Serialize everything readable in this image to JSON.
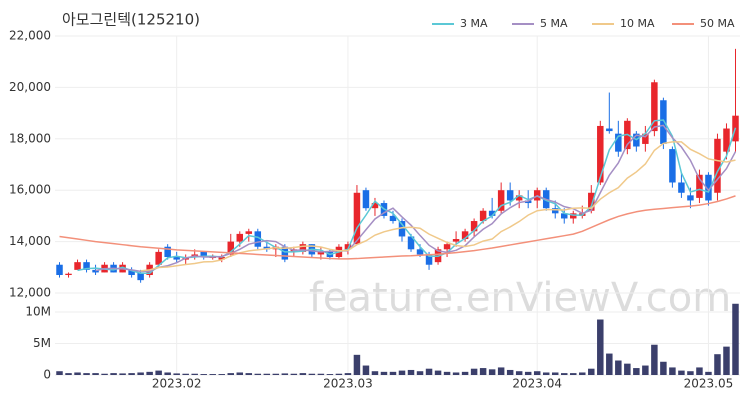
{
  "chart_data": [
    {
      "type": "candlestick",
      "title": "아모그린텍(125210)",
      "watermark": "feature.enViewV.com",
      "up_color": "#e8262c",
      "down_color": "#1a6ee6",
      "open": [
        13100,
        12700,
        12900,
        13200,
        12900,
        12800,
        13100,
        12800,
        12900,
        12800,
        12700,
        13100,
        13800,
        13400,
        13300,
        13400,
        13600,
        13400,
        13300,
        13500,
        14000,
        14300,
        14400,
        13800,
        13700,
        13800,
        13600,
        13600,
        13900,
        13500,
        13600,
        13400,
        13700,
        13900,
        16000,
        15300,
        15500,
        15000,
        14800,
        14200,
        13700,
        13500,
        13200,
        13700,
        14000,
        14100,
        14400,
        14800,
        15200,
        15200,
        16000,
        15600,
        15600,
        15600,
        16000,
        15300,
        15100,
        14900,
        15000,
        15200,
        16300,
        18400,
        18200,
        17600,
        18200,
        17800,
        18300,
        19500,
        17600,
        16300,
        15800,
        15700,
        16600,
        15900,
        17500,
        17900
      ],
      "high": [
        13200,
        12800,
        13300,
        13300,
        13100,
        13200,
        13200,
        13200,
        13000,
        12900,
        13200,
        13700,
        13900,
        13600,
        13500,
        13700,
        13600,
        13500,
        13500,
        14300,
        14400,
        14500,
        14500,
        14000,
        13900,
        13900,
        13800,
        14000,
        13900,
        13800,
        13700,
        13900,
        14000,
        16200,
        16100,
        15700,
        15600,
        15200,
        14900,
        14300,
        13900,
        13600,
        13800,
        14000,
        14400,
        14500,
        14900,
        15300,
        15700,
        16300,
        16300,
        16000,
        16000,
        16100,
        16100,
        15600,
        15300,
        15200,
        15400,
        16200,
        18700,
        19800,
        18700,
        18800,
        18300,
        18500,
        20300,
        19600,
        17700,
        16700,
        16100,
        16800,
        16700,
        18200,
        18600,
        21500
      ],
      "low": [
        12600,
        12600,
        12900,
        12800,
        12700,
        12800,
        12800,
        12800,
        12600,
        12400,
        12600,
        13000,
        13300,
        13200,
        13100,
        13300,
        13300,
        13300,
        13200,
        13400,
        13800,
        14000,
        13700,
        13600,
        13400,
        13200,
        13400,
        13500,
        13400,
        13300,
        13300,
        13300,
        13500,
        13900,
        15200,
        15000,
        14900,
        14700,
        14000,
        13600,
        13400,
        12900,
        13100,
        13400,
        13800,
        14000,
        14200,
        14700,
        14900,
        15100,
        15400,
        15300,
        15300,
        15300,
        15200,
        14900,
        14700,
        14700,
        14900,
        15100,
        16200,
        18200,
        17300,
        17400,
        17500,
        17500,
        18100,
        17600,
        16100,
        15700,
        15300,
        15500,
        15400,
        15600,
        17200,
        17500
      ],
      "close": [
        12700,
        12750,
        13200,
        12900,
        12800,
        13100,
        12800,
        13100,
        12700,
        12500,
        13100,
        13600,
        13400,
        13300,
        13400,
        13500,
        13400,
        13400,
        13400,
        14000,
        14300,
        14400,
        13800,
        13700,
        13800,
        13300,
        13700,
        13900,
        13500,
        13600,
        13400,
        13800,
        13900,
        15900,
        15300,
        15500,
        15000,
        14800,
        14200,
        13700,
        13500,
        13100,
        13700,
        13900,
        14100,
        14400,
        14800,
        15200,
        15000,
        16000,
        15600,
        15800,
        15500,
        16000,
        15300,
        15100,
        14900,
        15100,
        15100,
        15900,
        18500,
        18300,
        17500,
        18700,
        17700,
        18200,
        20200,
        17800,
        16300,
        15900,
        15600,
        16600,
        15600,
        18000,
        18400,
        18900
      ],
      "lines": [
        {
          "name": "3 MA",
          "color": "#5bc8d6",
          "values": [
            null,
            null,
            12880,
            12950,
            12970,
            12930,
            12900,
            13000,
            12870,
            12770,
            12770,
            13070,
            13370,
            13430,
            13370,
            13400,
            13430,
            13430,
            13400,
            13600,
            13900,
            14230,
            14170,
            13970,
            13770,
            13600,
            13600,
            13630,
            13700,
            13670,
            13500,
            13600,
            13700,
            14530,
            15030,
            15570,
            15270,
            15100,
            14670,
            14230,
            13800,
            13430,
            13430,
            13570,
            13900,
            14130,
            14430,
            14800,
            15000,
            15400,
            15530,
            15800,
            15630,
            15770,
            15600,
            15470,
            15100,
            15030,
            15030,
            15370,
            16500,
            17570,
            18100,
            18170,
            17970,
            18200,
            18700,
            18730,
            18100,
            16670,
            15930,
            16030,
            15930,
            16730,
            17330,
            18430
          ]
        },
        {
          "name": "5 MA",
          "color": "#a58fc4",
          "values": [
            null,
            null,
            null,
            null,
            12870,
            12950,
            12960,
            12940,
            12900,
            12840,
            12840,
            13000,
            13060,
            13180,
            13360,
            13440,
            13400,
            13400,
            13420,
            13540,
            13700,
            13900,
            13980,
            14040,
            14000,
            13800,
            13660,
            13680,
            13640,
            13600,
            13620,
            13640,
            13640,
            14040,
            14460,
            14880,
            15120,
            15300,
            14960,
            14640,
            14240,
            13860,
            13640,
            13580,
            13660,
            13840,
            14180,
            14480,
            14700,
            15080,
            15320,
            15520,
            15580,
            15780,
            15640,
            15540,
            15360,
            15280,
            15100,
            15220,
            15900,
            16580,
            17060,
            17780,
            18140,
            18080,
            18460,
            18520,
            18040,
            17680,
            17160,
            16440,
            16000,
            16420,
            16840,
            17500
          ]
        },
        {
          "name": "10 MA",
          "color": "#f0c98a",
          "values": [
            null,
            null,
            null,
            null,
            null,
            null,
            null,
            null,
            null,
            12860,
            12900,
            12990,
            13010,
            13060,
            13110,
            13150,
            13210,
            13220,
            13290,
            13440,
            13560,
            13640,
            13680,
            13720,
            13760,
            13740,
            13770,
            13820,
            13830,
            13790,
            13700,
            13640,
            13660,
            13880,
            14030,
            14250,
            14380,
            14470,
            14540,
            14560,
            14520,
            14290,
            14130,
            13970,
            13850,
            13810,
            13870,
            14020,
            14100,
            14390,
            14570,
            14780,
            15030,
            15200,
            15250,
            15240,
            15230,
            15300,
            15310,
            15300,
            15650,
            15900,
            16100,
            16470,
            16710,
            17020,
            17550,
            17820,
            17880,
            17880,
            17590,
            17420,
            17220,
            17150,
            17100,
            17170
          ]
        },
        {
          "name": "50 MA",
          "color": "#f3907a",
          "values": [
            14200,
            14150,
            14100,
            14050,
            14000,
            13960,
            13920,
            13880,
            13840,
            13800,
            13770,
            13740,
            13710,
            13680,
            13660,
            13640,
            13620,
            13600,
            13580,
            13560,
            13540,
            13520,
            13500,
            13480,
            13460,
            13440,
            13420,
            13400,
            13380,
            13360,
            13340,
            13330,
            13330,
            13340,
            13360,
            13380,
            13400,
            13420,
            13440,
            13450,
            13470,
            13490,
            13510,
            13540,
            13570,
            13610,
            13650,
            13700,
            13750,
            13810,
            13870,
            13930,
            13990,
            14050,
            14110,
            14170,
            14230,
            14290,
            14400,
            14550,
            14700,
            14850,
            14980,
            15080,
            15160,
            15220,
            15260,
            15290,
            15320,
            15350,
            15380,
            15420,
            15480,
            15560,
            15660,
            15780
          ]
        }
      ],
      "ylim": [
        12000,
        22000
      ],
      "yticks": [
        {
          "value": 12000,
          "label": "12,000"
        },
        {
          "value": 14000,
          "label": "14,000"
        },
        {
          "value": 16000,
          "label": "16,000"
        },
        {
          "value": 18000,
          "label": "18,000"
        },
        {
          "value": 20000,
          "label": "20,000"
        },
        {
          "value": 22000,
          "label": "22,000"
        }
      ],
      "xlim": [
        -0.5,
        75.5
      ],
      "xticks": [
        {
          "value": 13,
          "label": "2023.02"
        },
        {
          "value": 32,
          "label": "2023.03"
        },
        {
          "value": 53,
          "label": "2023.04"
        },
        {
          "value": 72,
          "label": "2023.05"
        }
      ],
      "grid": true
    },
    {
      "type": "bar",
      "color": "#3b3f6b",
      "values": [
        600000,
        300000,
        400000,
        300000,
        300000,
        200000,
        300000,
        250000,
        300000,
        400000,
        500000,
        700000,
        400000,
        250000,
        200000,
        200000,
        150000,
        150000,
        150000,
        300000,
        400000,
        300000,
        200000,
        200000,
        200000,
        250000,
        200000,
        300000,
        200000,
        200000,
        150000,
        200000,
        300000,
        3200000,
        1500000,
        600000,
        500000,
        500000,
        700000,
        800000,
        600000,
        1000000,
        700000,
        500000,
        400000,
        500000,
        1000000,
        1100000,
        900000,
        1200000,
        800000,
        600000,
        500000,
        600000,
        400000,
        400000,
        300000,
        300000,
        400000,
        1000000,
        8800000,
        3400000,
        2300000,
        1800000,
        1100000,
        1500000,
        4800000,
        2100000,
        1200000,
        700000,
        600000,
        1200000,
        500000,
        3300000,
        4500000,
        11300000
      ],
      "ylim": [
        0,
        11500000
      ],
      "yticks": [
        0,
        {
          "value": 5000000,
          "label": "5M"
        },
        {
          "value": 10000000,
          "label": "10M"
        }
      ]
    }
  ]
}
